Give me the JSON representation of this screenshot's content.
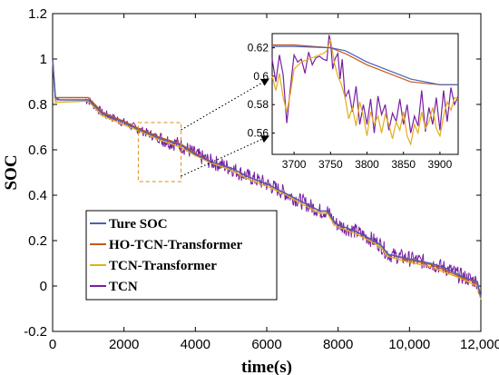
{
  "chart_data": [
    {
      "id": "main",
      "type": "line",
      "xlabel": "time(s)",
      "ylabel": "SOC",
      "xlim": [
        0,
        12000
      ],
      "ylim": [
        -0.2,
        1.2
      ],
      "xticks": [
        0,
        2000,
        4000,
        6000,
        8000,
        10000,
        12000
      ],
      "xtick_labels": [
        "0",
        "2000",
        "4000",
        "6000",
        "8000",
        "10,000",
        "12,000"
      ],
      "yticks": [
        -0.2,
        0,
        0.2,
        0.4,
        0.6,
        0.8,
        1,
        1.2
      ],
      "ytick_labels": [
        "-0.2",
        "0",
        "0.2",
        "0.4",
        "0.6",
        "0.8",
        "1",
        "1.2"
      ],
      "grid": false,
      "legend_position": "bottom-left",
      "series": [
        {
          "name": "Ture SOC",
          "color": "#4a5fb5",
          "x": [
            0,
            80,
            200,
            1000,
            1400,
            2000,
            2400,
            3000,
            3600,
            4000,
            4400,
            5000,
            5500,
            6000,
            6500,
            7000,
            7500,
            7700,
            7900,
            8000,
            8500,
            9000,
            9200,
            9400,
            10000,
            10600,
            11000,
            11500,
            11900,
            12000
          ],
          "y": [
            1.0,
            0.83,
            0.82,
            0.82,
            0.76,
            0.72,
            0.69,
            0.65,
            0.62,
            0.58,
            0.55,
            0.52,
            0.48,
            0.45,
            0.41,
            0.37,
            0.33,
            0.33,
            0.28,
            0.27,
            0.24,
            0.2,
            0.18,
            0.14,
            0.12,
            0.1,
            0.08,
            0.04,
            0.02,
            -0.05
          ]
        },
        {
          "name": "HO-TCN-Transformer",
          "color": "#c25a1f",
          "x": [
            0,
            80,
            200,
            1000,
            1400,
            2000,
            2400,
            3000,
            3600,
            4000,
            4400,
            5000,
            5500,
            6000,
            6500,
            7000,
            7500,
            7700,
            7900,
            8000,
            8500,
            9000,
            9200,
            9400,
            10000,
            10600,
            11000,
            11500,
            11900,
            12000
          ],
          "y": [
            1.0,
            0.83,
            0.83,
            0.83,
            0.765,
            0.725,
            0.695,
            0.655,
            0.625,
            0.585,
            0.55,
            0.52,
            0.48,
            0.45,
            0.41,
            0.37,
            0.33,
            0.33,
            0.28,
            0.27,
            0.24,
            0.2,
            0.18,
            0.14,
            0.115,
            0.095,
            0.07,
            0.035,
            0.015,
            -0.05
          ]
        },
        {
          "name": "TCN-Transformer",
          "color": "#e3ad1d",
          "x": [
            0,
            80,
            200,
            1000,
            1400,
            2000,
            2400,
            3000,
            3600,
            4000,
            4400,
            5000,
            5500,
            6000,
            6500,
            7000,
            7500,
            7700,
            7900,
            8000,
            8500,
            9000,
            9200,
            9400,
            10000,
            10600,
            11000,
            11500,
            11900,
            12000
          ],
          "y": [
            1.0,
            0.81,
            0.81,
            0.815,
            0.75,
            0.71,
            0.685,
            0.645,
            0.61,
            0.575,
            0.545,
            0.51,
            0.47,
            0.44,
            0.405,
            0.36,
            0.32,
            0.32,
            0.27,
            0.26,
            0.23,
            0.19,
            0.17,
            0.13,
            0.105,
            0.085,
            0.06,
            0.03,
            0.0,
            -0.06
          ]
        },
        {
          "name": "TCN",
          "color": "#7a1fa2",
          "x": [
            0,
            80,
            200,
            1000,
            1400,
            2000,
            2400,
            3000,
            3600,
            4000,
            4400,
            5000,
            5500,
            6000,
            6500,
            7000,
            7500,
            7700,
            7900,
            8000,
            8500,
            9000,
            9200,
            9400,
            10000,
            10600,
            11000,
            11500,
            11900,
            12000
          ],
          "y": [
            1.0,
            0.82,
            0.82,
            0.82,
            0.76,
            0.72,
            0.69,
            0.65,
            0.62,
            0.58,
            0.55,
            0.52,
            0.48,
            0.45,
            0.41,
            0.37,
            0.33,
            0.33,
            0.28,
            0.27,
            0.24,
            0.2,
            0.18,
            0.14,
            0.12,
            0.1,
            0.08,
            0.04,
            0.02,
            -0.06
          ],
          "noise": 0.035
        }
      ],
      "zoom_box": {
        "x": [
          2400,
          3600
        ],
        "y": [
          0.46,
          0.72
        ]
      }
    },
    {
      "id": "inset",
      "type": "line",
      "xlim": [
        3670,
        3925
      ],
      "ylim": [
        0.545,
        0.63
      ],
      "xticks": [
        3700,
        3750,
        3800,
        3850,
        3900
      ],
      "xtick_labels": [
        "3700",
        "3750",
        "3800",
        "3850",
        "3900"
      ],
      "yticks": [
        0.56,
        0.58,
        0.6,
        0.62
      ],
      "ytick_labels": [
        "0.56",
        "0.58",
        "0.6",
        "0.62"
      ],
      "series": [
        {
          "name": "Ture SOC",
          "color": "#4a5fb5",
          "x": [
            3670,
            3700,
            3750,
            3770,
            3800,
            3830,
            3860,
            3900,
            3925
          ],
          "y": [
            0.621,
            0.621,
            0.62,
            0.618,
            0.61,
            0.604,
            0.598,
            0.594,
            0.594
          ]
        },
        {
          "name": "HO-TCN-Transformer",
          "color": "#c25a1f",
          "x": [
            3670,
            3700,
            3750,
            3770,
            3800,
            3830,
            3860,
            3900,
            3925
          ],
          "y": [
            0.622,
            0.622,
            0.62,
            0.616,
            0.608,
            0.602,
            0.596,
            0.594,
            0.594
          ]
        },
        {
          "name": "TCN-Transformer",
          "color": "#e3ad1d",
          "x": [
            3670,
            3675,
            3680,
            3685,
            3690,
            3695,
            3700,
            3710,
            3720,
            3730,
            3740,
            3745,
            3750,
            3755,
            3760,
            3765,
            3770,
            3775,
            3780,
            3785,
            3790,
            3795,
            3800,
            3805,
            3810,
            3815,
            3820,
            3825,
            3830,
            3835,
            3840,
            3845,
            3850,
            3855,
            3860,
            3865,
            3870,
            3875,
            3880,
            3885,
            3890,
            3895,
            3900,
            3905,
            3910,
            3915,
            3920,
            3925
          ],
          "y": [
            0.6,
            0.59,
            0.602,
            0.585,
            0.575,
            0.588,
            0.605,
            0.61,
            0.612,
            0.614,
            0.616,
            0.618,
            0.626,
            0.61,
            0.6,
            0.594,
            0.585,
            0.57,
            0.578,
            0.565,
            0.582,
            0.572,
            0.558,
            0.575,
            0.566,
            0.572,
            0.56,
            0.573,
            0.566,
            0.556,
            0.568,
            0.562,
            0.575,
            0.558,
            0.552,
            0.566,
            0.56,
            0.575,
            0.563,
            0.568,
            0.578,
            0.563,
            0.558,
            0.572,
            0.582,
            0.576,
            0.585,
            0.584
          ]
        },
        {
          "name": "TCN",
          "color": "#7a1fa2",
          "x": [
            3670,
            3675,
            3680,
            3685,
            3690,
            3695,
            3700,
            3705,
            3710,
            3715,
            3720,
            3725,
            3730,
            3735,
            3740,
            3745,
            3748,
            3750,
            3753,
            3756,
            3760,
            3763,
            3766,
            3770,
            3775,
            3780,
            3785,
            3790,
            3795,
            3800,
            3805,
            3810,
            3815,
            3820,
            3825,
            3830,
            3835,
            3840,
            3845,
            3850,
            3855,
            3860,
            3865,
            3870,
            3875,
            3880,
            3885,
            3890,
            3895,
            3900,
            3905,
            3910,
            3915,
            3920,
            3925
          ],
          "y": [
            0.612,
            0.596,
            0.615,
            0.601,
            0.567,
            0.592,
            0.615,
            0.61,
            0.612,
            0.602,
            0.617,
            0.608,
            0.613,
            0.614,
            0.612,
            0.611,
            0.629,
            0.625,
            0.605,
            0.612,
            0.616,
            0.598,
            0.612,
            0.585,
            0.59,
            0.575,
            0.593,
            0.566,
            0.58,
            0.566,
            0.584,
            0.56,
            0.586,
            0.573,
            0.58,
            0.562,
            0.574,
            0.568,
            0.584,
            0.566,
            0.58,
            0.56,
            0.572,
            0.565,
            0.59,
            0.561,
            0.578,
            0.566,
            0.585,
            0.562,
            0.59,
            0.568,
            0.592,
            0.58,
            0.586
          ]
        }
      ]
    }
  ]
}
